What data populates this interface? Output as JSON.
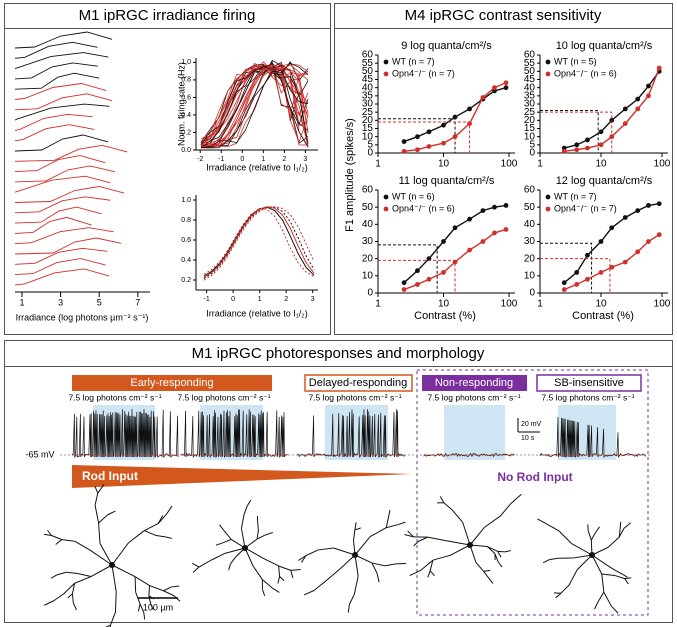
{
  "panel_a": {
    "title": "M1 ipRGC irradiance firing",
    "traces_axis": {
      "ticks": [
        1,
        3,
        5,
        7
      ],
      "label": "Irradiance (log photons µm⁻² s⁻¹)"
    },
    "top_plot": {
      "ylabel": "Norm. firing rate (Hz)",
      "xlabel": "Irradiance (relative to I₁/₂)",
      "yticks": [
        {
          "value": 0,
          "label": "0.0"
        },
        0.2,
        0.4,
        0.6,
        0.8,
        {
          "value": 1,
          "label": "1.0"
        }
      ],
      "xticks": [
        -2,
        -1,
        0,
        1,
        2,
        3
      ]
    },
    "bottom_plot": {
      "xlabel": "Irradiance (relative to I₁/₂)",
      "yticks": [
        0.2,
        0.4,
        0.6,
        0.8,
        {
          "value": 1,
          "label": "1.0"
        }
      ],
      "xticks": [
        -1,
        0,
        1,
        2,
        3
      ]
    }
  },
  "panel_b": {
    "title": "M4 ipRGC contrast sensitivity",
    "ylabel": "F1 amplitude (spikes/s)",
    "xlabel": "Contrast (%)"
  },
  "chart_data": [
    {
      "type": "line",
      "title": "9 log quanta/cm²/s",
      "xscale": "log",
      "x": [
        2.5,
        4,
        6,
        10,
        15,
        25,
        40,
        60,
        90
      ],
      "xlim": [
        1,
        100
      ],
      "xticks": [
        1,
        10,
        100
      ],
      "ylim": [
        0,
        60
      ],
      "yticks": [
        0,
        5,
        10,
        15,
        20,
        25,
        30,
        35,
        40,
        45,
        50,
        55,
        60
      ],
      "series": [
        {
          "name": "WT (n = 7)",
          "color": "#111111",
          "values": [
            7,
            10,
            13,
            17,
            22,
            27,
            33,
            38,
            40
          ],
          "threshold": [
            15,
            21
          ]
        },
        {
          "name": "Opn4⁻/⁻ (n = 7)",
          "color": "#d12f2a",
          "values": [
            1,
            2,
            4,
            6,
            10,
            18,
            34,
            40,
            43
          ],
          "threshold": [
            25,
            19
          ]
        }
      ]
    },
    {
      "type": "line",
      "title": "10 log quanta/cm²/s",
      "xscale": "log",
      "x": [
        2.5,
        4,
        6,
        10,
        15,
        25,
        40,
        60,
        90
      ],
      "xlim": [
        1,
        100
      ],
      "xticks": [
        1,
        10,
        100
      ],
      "ylim": [
        0,
        60
      ],
      "yticks": [
        0,
        5,
        10,
        15,
        20,
        25,
        30,
        35,
        40,
        45,
        50,
        55,
        60
      ],
      "series": [
        {
          "name": "WT (n = 5)",
          "color": "#111111",
          "values": [
            3,
            5,
            8,
            13,
            20,
            27,
            33,
            41,
            50
          ],
          "threshold": [
            9,
            26
          ]
        },
        {
          "name": "Opn4⁻/⁻ (n = 6)",
          "color": "#d12f2a",
          "values": [
            1,
            2,
            3,
            5,
            10,
            18,
            27,
            35,
            52
          ],
          "threshold": [
            15,
            25
          ]
        }
      ]
    },
    {
      "type": "line",
      "title": "11 log quanta/cm²/s",
      "xscale": "log",
      "x": [
        2.5,
        4,
        6,
        10,
        15,
        25,
        40,
        60,
        90
      ],
      "xlim": [
        1,
        100
      ],
      "xticks": [
        1,
        10,
        100
      ],
      "ylim": [
        0,
        60
      ],
      "yticks": [
        0,
        10,
        20,
        30,
        40,
        50,
        60
      ],
      "series": [
        {
          "name": "WT (n = 6)",
          "color": "#111111",
          "values": [
            6,
            13,
            20,
            30,
            38,
            43,
            48,
            50,
            51
          ],
          "threshold": [
            8,
            28
          ]
        },
        {
          "name": "Opn4⁻/⁻ (n = 6)",
          "color": "#d12f2a",
          "values": [
            2,
            5,
            8,
            12,
            18,
            25,
            30,
            35,
            37
          ],
          "threshold": [
            15,
            19
          ]
        }
      ]
    },
    {
      "type": "line",
      "title": "12 log quanta/cm²/s",
      "xscale": "log",
      "x": [
        2.5,
        4,
        6,
        10,
        15,
        25,
        40,
        60,
        90
      ],
      "xlim": [
        1,
        100
      ],
      "xticks": [
        1,
        10,
        100
      ],
      "ylim": [
        0,
        60
      ],
      "yticks": [
        0,
        10,
        20,
        30,
        40,
        50,
        60
      ],
      "series": [
        {
          "name": "WT (n = 7)",
          "color": "#111111",
          "values": [
            6,
            12,
            22,
            30,
            38,
            44,
            48,
            51,
            52
          ],
          "threshold": [
            7,
            29
          ]
        },
        {
          "name": "Opn4⁻/⁻ (n = 7)",
          "color": "#d12f2a",
          "values": [
            2,
            5,
            8,
            12,
            15,
            18,
            24,
            30,
            34
          ],
          "threshold": [
            14,
            20
          ]
        }
      ]
    }
  ],
  "panel_c": {
    "title": "M1 ipRGC photoresponses and morphology",
    "groups": [
      "Early-responding",
      "Delayed-responding",
      "Non-responding",
      "SB-insensitive"
    ],
    "stimuli": [
      "7.5 log photons cm⁻² s⁻¹",
      "7.5 log photons cm⁻² s⁻¹",
      "7.5 log photons cm⁻² s⁻¹",
      "7.5 log photons cm⁻² s⁻¹",
      "7.5 log photons cm⁻² s⁻¹"
    ],
    "baseline": "-65 mV",
    "scale_v": "20 mV",
    "scale_t": "10 s",
    "rod_input": "Rod Input",
    "no_rod_input": "No Rod Input",
    "morph_scale": "100 µm"
  }
}
